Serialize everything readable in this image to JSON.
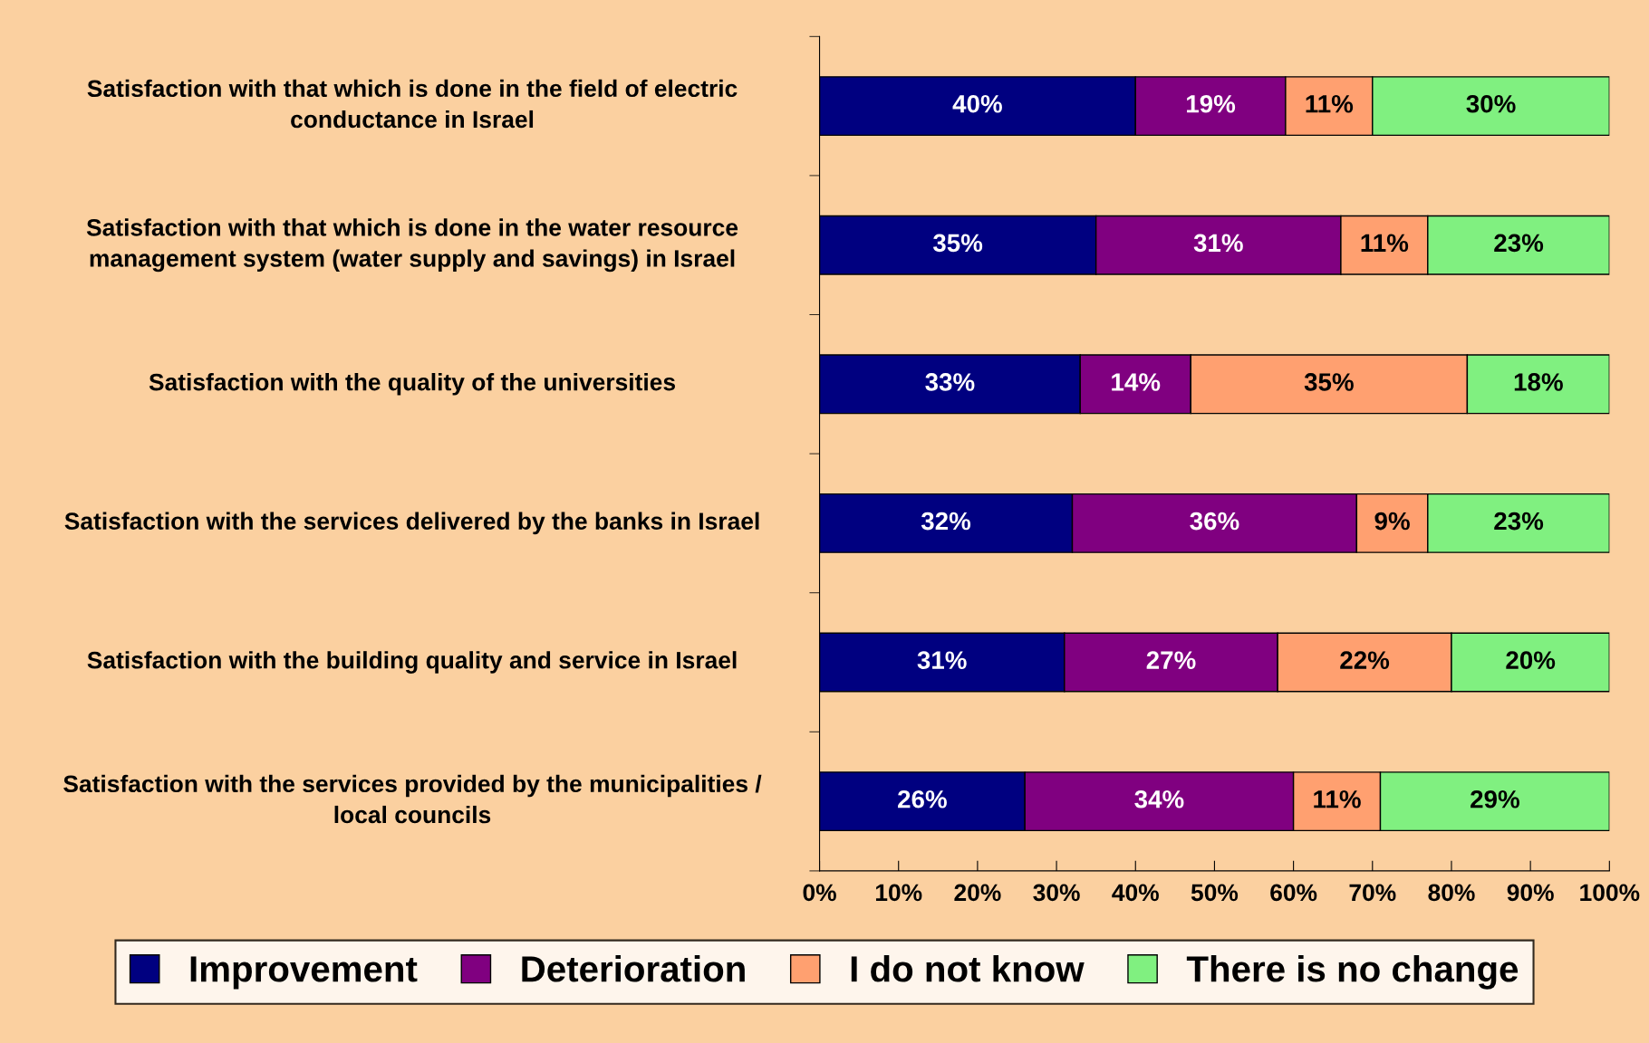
{
  "chart_data": {
    "type": "bar",
    "orientation": "horizontal",
    "stacked": true,
    "categories": [
      "Satisfaction with that which is done in the field of electric\nconductance in Israel",
      "Satisfaction with that which is done in the water resource\nmanagement system (water supply and savings) in Israel",
      "Satisfaction with the quality of the universities",
      "Satisfaction with the services delivered by the banks in Israel",
      "Satisfaction with the building quality and service in Israel",
      "Satisfaction with the services provided by the municipalities /\nlocal councils"
    ],
    "series": [
      {
        "name": "Improvement",
        "color": "#000080",
        "values": [
          40,
          35,
          33,
          32,
          31,
          26
        ],
        "value_labels": [
          "40%",
          "35%",
          "33%",
          "32%",
          "31%",
          "26%"
        ]
      },
      {
        "name": "Deterioration",
        "color": "#800080",
        "values": [
          19,
          31,
          14,
          36,
          27,
          34
        ],
        "value_labels": [
          "19%",
          "31%",
          "14%",
          "36%",
          "27%",
          "34%"
        ]
      },
      {
        "name": "I do not know",
        "color": "#ffa070",
        "values": [
          11,
          11,
          35,
          9,
          22,
          11
        ],
        "value_labels": [
          "11%",
          "11%",
          "35%",
          "9%",
          "22%",
          "11%"
        ]
      },
      {
        "name": "There is no change",
        "color": "#80f080",
        "values": [
          30,
          23,
          18,
          23,
          20,
          29
        ],
        "value_labels": [
          "30%",
          "23%",
          "18%",
          "23%",
          "20%",
          "29%"
        ]
      }
    ],
    "xlim": [
      0,
      100
    ],
    "xticks": [
      {
        "value": 0,
        "label": "0%"
      },
      {
        "value": 10,
        "label": "10%"
      },
      {
        "value": 20,
        "label": "20%"
      },
      {
        "value": 30,
        "label": "30%"
      },
      {
        "value": 40,
        "label": "40%"
      },
      {
        "value": 50,
        "label": "50%"
      },
      {
        "value": 60,
        "label": "60%"
      },
      {
        "value": 70,
        "label": "70%"
      },
      {
        "value": 80,
        "label": "80%"
      },
      {
        "value": 90,
        "label": "90%"
      },
      {
        "value": 100,
        "label": "100%"
      }
    ],
    "grid": false,
    "legend": "bottom"
  }
}
